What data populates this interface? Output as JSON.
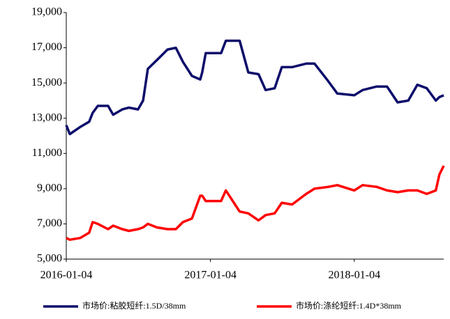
{
  "chart_data": {
    "type": "line",
    "x": [
      "2016-01-04",
      "2016-01-13",
      "2016-02-08",
      "2016-03-02",
      "2016-03-11",
      "2016-03-24",
      "2016-04-19",
      "2016-05-02",
      "2016-05-25",
      "2016-06-11",
      "2016-07-04",
      "2016-07-17",
      "2016-07-29",
      "2016-08-21",
      "2016-09-17",
      "2016-10-08",
      "2016-10-26",
      "2016-11-18",
      "2016-12-09",
      "2016-12-14",
      "2016-12-23",
      "2017-01-31",
      "2017-02-12",
      "2017-03-19",
      "2017-04-10",
      "2017-05-06",
      "2017-05-24",
      "2017-06-16",
      "2017-07-04",
      "2017-07-30",
      "2017-09-04",
      "2017-09-25",
      "2017-10-30",
      "2017-11-22",
      "2018-01-04",
      "2018-01-25",
      "2018-03-02",
      "2018-03-28",
      "2018-04-24",
      "2018-05-21",
      "2018-06-13",
      "2018-07-07",
      "2018-07-30",
      "2018-08-08",
      "2018-08-19"
    ],
    "series": [
      {
        "name": "市场价:粘胶短纤:1.5D/38mm",
        "color": "#0d0d6b",
        "values": [
          12600,
          12100,
          12500,
          12800,
          13300,
          13700,
          13700,
          13200,
          13500,
          13600,
          13500,
          14000,
          15800,
          16300,
          16900,
          17000,
          16200,
          15400,
          15200,
          15600,
          16700,
          16700,
          17400,
          17400,
          15600,
          15500,
          14600,
          14700,
          15900,
          15900,
          16100,
          16100,
          15100,
          14400,
          14300,
          14600,
          14800,
          14800,
          13900,
          14000,
          14900,
          14700,
          14000,
          14200,
          14300
        ]
      },
      {
        "name": "市场价:涤纶短纤:1.4D*38mm",
        "color": "#ff0000",
        "values": [
          6200,
          6100,
          6200,
          6500,
          7100,
          7000,
          6700,
          6900,
          6700,
          6600,
          6700,
          6800,
          7000,
          6800,
          6700,
          6700,
          7100,
          7300,
          8600,
          8600,
          8300,
          8300,
          8900,
          7700,
          7600,
          7200,
          7500,
          7600,
          8200,
          8100,
          8700,
          9000,
          9100,
          9200,
          8900,
          9200,
          9100,
          8900,
          8800,
          8900,
          8900,
          8700,
          8900,
          9800,
          10300
        ]
      }
    ],
    "xlim": [
      "2016-01-04",
      "2018-08-19"
    ],
    "xticks": [
      "2016-01-04",
      "2017-01-04",
      "2018-01-04"
    ],
    "ylim": [
      5000,
      19000
    ],
    "yticks": [
      {
        "value": 5000,
        "label": "5,000"
      },
      {
        "value": 7000,
        "label": "7,000"
      },
      {
        "value": 9000,
        "label": "9,000"
      },
      {
        "value": 11000,
        "label": "11,000"
      },
      {
        "value": 13000,
        "label": "13,000"
      },
      {
        "value": 15000,
        "label": "15,000"
      },
      {
        "value": 17000,
        "label": "17,000"
      },
      {
        "value": 19000,
        "label": "19,000"
      }
    ],
    "grid": false,
    "legend": "bottom"
  }
}
